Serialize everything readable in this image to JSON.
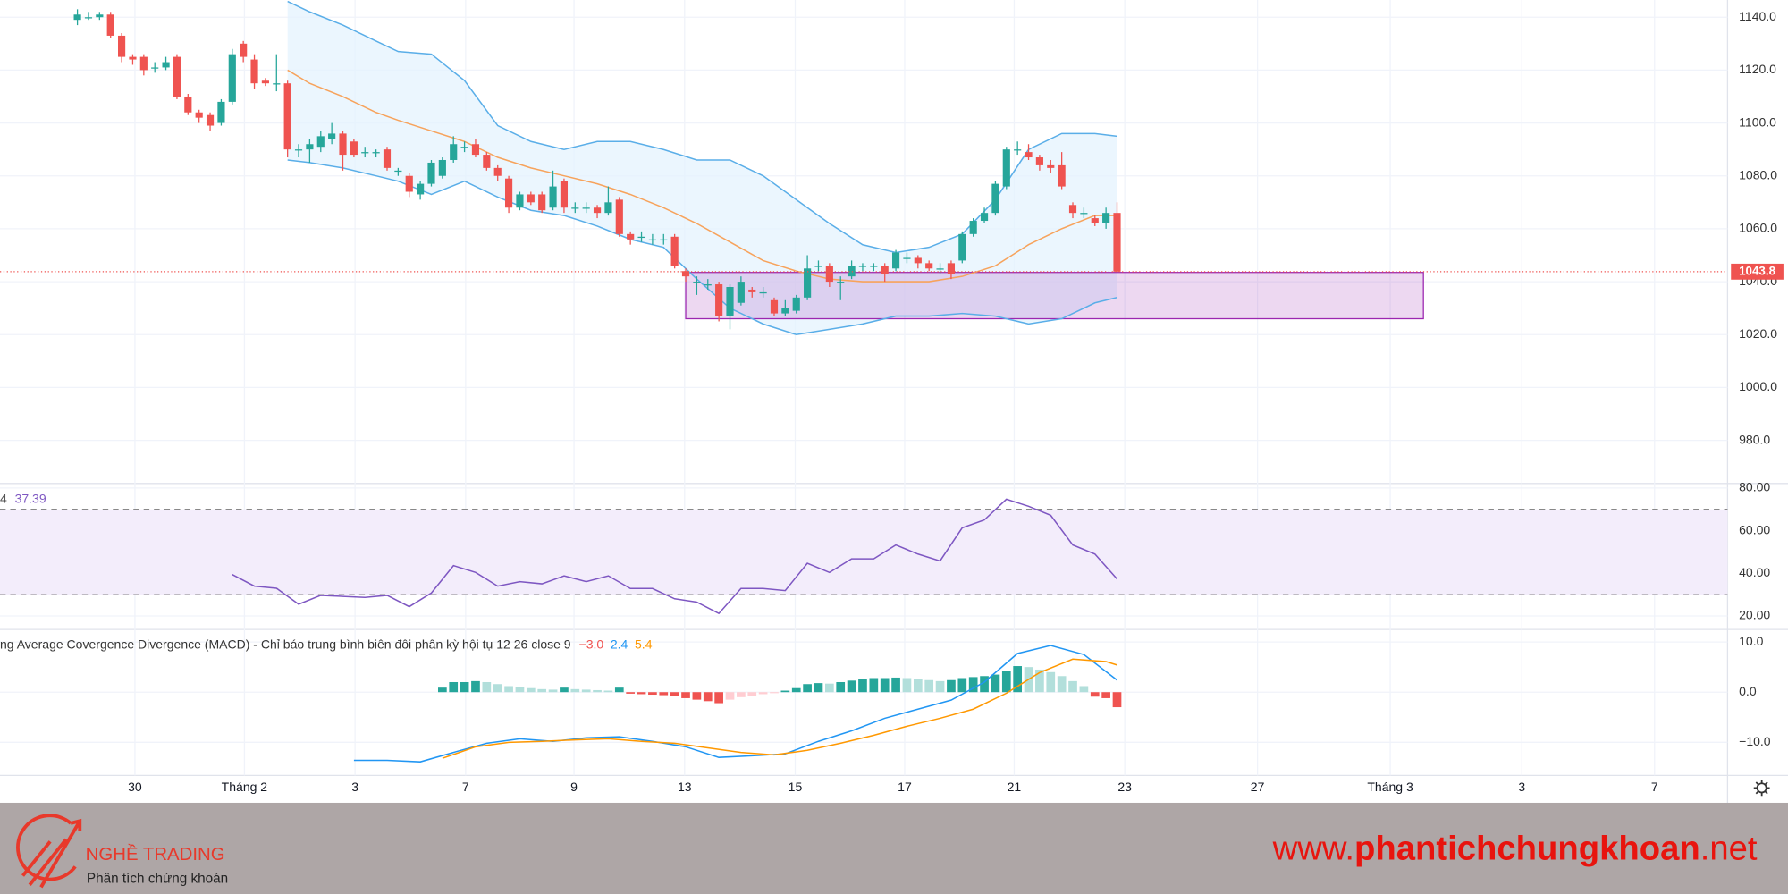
{
  "chart_data": [
    {
      "type": "candlestick",
      "open": [
        1139,
        1140,
        1140,
        1141,
        1133,
        1125,
        1125,
        1121,
        1121,
        1125,
        1110,
        1104,
        1103,
        1100,
        1108,
        1130,
        1124,
        1116,
        1115,
        1115,
        1090,
        1090,
        1091,
        1094,
        1096,
        1093,
        1089,
        1089,
        1090,
        1082,
        1080,
        1073,
        1077,
        1080,
        1086,
        1091,
        1092,
        1088,
        1083,
        1079,
        1068,
        1073,
        1073,
        1068,
        1078,
        1068,
        1068,
        1068,
        1066,
        1071,
        1058,
        1057,
        1056,
        1056,
        1057,
        1044,
        1040,
        1039,
        1039,
        1027,
        1032,
        1037,
        1036,
        1033,
        1028,
        1029,
        1034,
        1046,
        1046,
        1040,
        1042,
        1046,
        1046,
        1046,
        1045,
        1049,
        1049,
        1047,
        1045,
        1047,
        1048,
        1058,
        1063,
        1066,
        1076,
        1090,
        1089,
        1087,
        1084,
        1084,
        1069,
        1066,
        1064,
        1062,
        1066
      ],
      "high": [
        1143,
        1142,
        1142,
        1142,
        1134,
        1126,
        1126,
        1123,
        1125,
        1126,
        1111,
        1105,
        1104,
        1109,
        1128,
        1131,
        1126,
        1117,
        1126,
        1116,
        1092,
        1094,
        1097,
        1100,
        1097,
        1094,
        1091,
        1090,
        1091,
        1083,
        1081,
        1078,
        1086,
        1087,
        1095,
        1093,
        1094,
        1089,
        1084,
        1080,
        1074,
        1074,
        1074,
        1082,
        1079,
        1070,
        1070,
        1069,
        1076,
        1072,
        1059,
        1059,
        1058,
        1058,
        1058,
        1045,
        1042,
        1041,
        1040,
        1039,
        1042,
        1038,
        1038,
        1034,
        1033,
        1035,
        1050,
        1048,
        1047,
        1042,
        1048,
        1047,
        1047,
        1047,
        1052,
        1051,
        1050,
        1048,
        1047,
        1048,
        1059,
        1064,
        1068,
        1078,
        1091,
        1093,
        1092,
        1088,
        1086,
        1089,
        1070,
        1068,
        1065,
        1068,
        1070
      ],
      "low": [
        1137,
        1139,
        1139,
        1132,
        1123,
        1122,
        1118,
        1119,
        1120,
        1109,
        1103,
        1100,
        1097,
        1099,
        1107,
        1123,
        1113,
        1114,
        1112,
        1087,
        1087,
        1085,
        1089,
        1092,
        1082,
        1087,
        1087,
        1087,
        1082,
        1080,
        1072,
        1071,
        1076,
        1079,
        1085,
        1089,
        1087,
        1082,
        1078,
        1066,
        1067,
        1069,
        1066,
        1067,
        1066,
        1066,
        1066,
        1064,
        1065,
        1057,
        1054,
        1055,
        1054,
        1054,
        1045,
        1040,
        1035,
        1037,
        1025,
        1022,
        1031,
        1034,
        1034,
        1027,
        1027,
        1028,
        1033,
        1044,
        1038,
        1033,
        1041,
        1044,
        1044,
        1040,
        1044,
        1047,
        1045,
        1044,
        1043,
        1041,
        1047,
        1057,
        1062,
        1065,
        1075,
        1088,
        1086,
        1082,
        1081,
        1075,
        1064,
        1064,
        1061,
        1060,
        1043.8
      ],
      "close": [
        1141,
        1140,
        1141,
        1133,
        1125,
        1124,
        1120,
        1121,
        1123,
        1110,
        1104,
        1102,
        1099,
        1108,
        1126,
        1125,
        1115,
        1115,
        1115,
        1090,
        1090,
        1092,
        1095,
        1096,
        1088,
        1088,
        1089,
        1089,
        1083,
        1082,
        1074,
        1077,
        1085,
        1086,
        1092,
        1091,
        1088,
        1083,
        1080,
        1068,
        1073,
        1070,
        1067,
        1076,
        1068,
        1068,
        1068,
        1066,
        1070,
        1058,
        1056,
        1057,
        1056,
        1056,
        1046,
        1042,
        1040,
        1039,
        1027,
        1038,
        1040,
        1036,
        1036,
        1028,
        1030,
        1034,
        1045,
        1046,
        1040,
        1040,
        1046,
        1046,
        1046,
        1043,
        1051,
        1049,
        1047,
        1045,
        1045,
        1043,
        1058,
        1063,
        1066,
        1077,
        1090,
        1090,
        1087,
        1084,
        1083,
        1076,
        1066,
        1066,
        1062,
        1066,
        1043.8
      ],
      "up_color": "#26a69a",
      "down_color": "#ef5350",
      "series": [
        {
          "color": "#5aaee8",
          "x": [
            19,
            21,
            24,
            27,
            29,
            32,
            35,
            38,
            41,
            44,
            47,
            50,
            53,
            56,
            59,
            62,
            65,
            68,
            71,
            74,
            77,
            80,
            83,
            86,
            89,
            92,
            94
          ],
          "values": [
            1146,
            1142,
            1137,
            1131,
            1127,
            1126,
            1116,
            1099,
            1093,
            1090,
            1093,
            1093,
            1090,
            1086,
            1086,
            1080,
            1071,
            1062,
            1054,
            1051,
            1053,
            1058,
            1071,
            1090,
            1096,
            1096,
            1095
          ]
        },
        {
          "color": "#f7a35c",
          "x": [
            19,
            21,
            24,
            27,
            29,
            32,
            35,
            38,
            41,
            44,
            47,
            50,
            53,
            56,
            59,
            62,
            65,
            68,
            71,
            74,
            77,
            80,
            83,
            86,
            89,
            92,
            94
          ],
          "values": [
            1120,
            1115,
            1110,
            1104,
            1101,
            1097,
            1093,
            1087,
            1083,
            1080,
            1077,
            1073,
            1068,
            1062,
            1055,
            1048,
            1044,
            1041,
            1040,
            1040,
            1040,
            1042,
            1046,
            1054,
            1060,
            1065,
            1065
          ]
        },
        {
          "color": "#5aaee8",
          "x": [
            19,
            21,
            24,
            27,
            29,
            32,
            35,
            38,
            41,
            44,
            47,
            50,
            53,
            56,
            59,
            62,
            65,
            68,
            71,
            74,
            77,
            80,
            83,
            86,
            89,
            92,
            94
          ],
          "values": [
            1086,
            1085,
            1083,
            1080,
            1078,
            1073,
            1078,
            1072,
            1067,
            1065,
            1061,
            1056,
            1053,
            1041,
            1030,
            1024,
            1020,
            1022,
            1024,
            1027,
            1027,
            1028,
            1027,
            1024,
            1026,
            1032,
            1034
          ]
        }
      ],
      "band_fill": "#e3f2fd",
      "zone": {
        "x": [
          55,
          121.7
        ],
        "y": [
          1026,
          1043.5
        ],
        "color": "#9c27b0"
      },
      "price_line": 1043.8,
      "price_color": "#ef5350",
      "ylim": [
        963.7,
        1146.5
      ],
      "yticks": [
        {
          "value": 980,
          "label": "980.0"
        },
        {
          "value": 1000,
          "label": "1000.0"
        },
        {
          "value": 1020,
          "label": "1020.0"
        },
        {
          "value": 1040,
          "label": "1040.0"
        },
        {
          "value": 1060,
          "label": "1060.0"
        },
        {
          "value": 1080,
          "label": "1080.0"
        },
        {
          "value": 1100,
          "label": "1100.0"
        },
        {
          "value": 1120,
          "label": "1120.0"
        },
        {
          "value": 1140,
          "label": "1140.0"
        }
      ],
      "xlim": [
        -7,
        149.2
      ],
      "xticks": [
        {
          "value": 5.2,
          "label": "30"
        },
        {
          "value": 15.1,
          "label": "Tháng 2"
        },
        {
          "value": 25.1,
          "label": "3"
        },
        {
          "value": 35.1,
          "label": "7"
        },
        {
          "value": 44.9,
          "label": "9"
        },
        {
          "value": 54.9,
          "label": "13"
        },
        {
          "value": 64.9,
          "label": "15"
        },
        {
          "value": 74.8,
          "label": "17"
        },
        {
          "value": 84.7,
          "label": "21"
        },
        {
          "value": 94.7,
          "label": "23"
        },
        {
          "value": 106.7,
          "label": "27"
        },
        {
          "value": 118.7,
          "label": "Tháng 3"
        },
        {
          "value": 130.6,
          "label": "3"
        },
        {
          "value": 142.6,
          "label": "7"
        }
      ],
      "grid": true
    },
    {
      "type": "line",
      "legend": "4",
      "color": "#7e57c2",
      "x": [
        14,
        16,
        18,
        20,
        22,
        24,
        26,
        28,
        30,
        32,
        34,
        36,
        38,
        40,
        42,
        44,
        46,
        48,
        50,
        52,
        54,
        56,
        58,
        60,
        62,
        64,
        66,
        68,
        70,
        72,
        74,
        76,
        78,
        80,
        82,
        84,
        86,
        88,
        90,
        92,
        94
      ],
      "values": [
        39.4,
        34,
        33,
        25.5,
        29.7,
        29.2,
        28.7,
        29.7,
        24.4,
        30.8,
        43.6,
        40.4,
        34,
        36.1,
        35.1,
        38.8,
        36.1,
        38.8,
        32.9,
        32.9,
        28.1,
        26.5,
        21.2,
        32.9,
        32.9,
        31.9,
        44.7,
        40.4,
        46.8,
        46.8,
        53.3,
        49,
        45.8,
        61.3,
        65,
        74.7,
        71.4,
        67.2,
        53.3,
        49,
        37.39
      ],
      "band": [
        30,
        70
      ],
      "band_color": "#f3edfb",
      "ylim": [
        13.7,
        82.1
      ],
      "yticks": [
        {
          "value": 20,
          "label": "20.00"
        },
        {
          "value": 40,
          "label": "40.00"
        },
        {
          "value": 60,
          "label": "60.00"
        },
        {
          "value": 80,
          "label": "80.00"
        }
      ]
    },
    {
      "type": "bar",
      "legend": "ng Average Covergence Divergence (MACD) - Chỉ báo trung bình biên đôi phân kỳ hội tụ 12 26 close 9",
      "legend_labels": [
        "−3.0",
        "2.4",
        "5.4"
      ],
      "legend_colors": [
        "#ef5350",
        "#2196f3",
        "#ff9800"
      ],
      "x": [
        33,
        34,
        35,
        36,
        37,
        38,
        39,
        40,
        41,
        42,
        43,
        44,
        45,
        46,
        47,
        48,
        49,
        50,
        51,
        52,
        53,
        54,
        55,
        56,
        57,
        58,
        59,
        60,
        61,
        62,
        63,
        64,
        65,
        66,
        67,
        68,
        69,
        70,
        71,
        72,
        73,
        74,
        75,
        76,
        77,
        78,
        79,
        80,
        81,
        82,
        83,
        84,
        85,
        86,
        87,
        88,
        89,
        90,
        91,
        92,
        93,
        94
      ],
      "values": [
        0.9,
        2,
        2,
        2.2,
        2,
        1.6,
        1.2,
        1,
        0.8,
        0.6,
        0.5,
        0.9,
        0.6,
        0.5,
        0.4,
        0.3,
        0.9,
        -0.3,
        -0.4,
        -0.5,
        -0.6,
        -0.8,
        -1.2,
        -1.5,
        -1.8,
        -2.2,
        -1.5,
        -1,
        -0.7,
        -0.4,
        -0.2,
        0.3,
        0.8,
        1.6,
        1.8,
        1.7,
        2,
        2.3,
        2.6,
        2.8,
        2.8,
        2.9,
        2.8,
        2.6,
        2.4,
        2.2,
        2.4,
        2.8,
        3,
        3.2,
        3.5,
        4.3,
        5.2,
        5,
        4.5,
        4,
        3.2,
        2.2,
        1.2,
        -0.9,
        -1.2,
        -3
      ],
      "colors": {
        "up_grow": "#26a69a",
        "up_fall": "#b2dfdb",
        "down_fall": "#ef5350",
        "down_grow": "#ffcdd2"
      },
      "series": [
        {
          "color": "#2196f3",
          "x": [
            25,
            28,
            31,
            34,
            37,
            40,
            43,
            46,
            49,
            52,
            55,
            58,
            61,
            64,
            67,
            70,
            73,
            76,
            79,
            82,
            85,
            88,
            91,
            94
          ],
          "values": [
            -13.6,
            -13.6,
            -13.9,
            -12,
            -10.2,
            -9.3,
            -9.8,
            -9.1,
            -8.9,
            -9.8,
            -10.9,
            -13,
            -12.7,
            -12.3,
            -9.8,
            -7.7,
            -5.2,
            -3.4,
            -1.6,
            2,
            7.7,
            9.3,
            7.5,
            2.4
          ]
        },
        {
          "color": "#ff9800",
          "x": [
            33,
            36,
            39,
            42,
            45,
            48,
            51,
            54,
            57,
            60,
            63,
            66,
            69,
            72,
            75,
            78,
            81,
            84,
            87,
            90,
            93,
            94
          ],
          "values": [
            -13.2,
            -10.9,
            -10,
            -9.8,
            -9.5,
            -9.3,
            -9.8,
            -10.2,
            -11.1,
            -12,
            -12.5,
            -11.6,
            -10.2,
            -8.6,
            -6.8,
            -5.2,
            -3.4,
            -0.2,
            3.9,
            6.6,
            6.1,
            5.4
          ]
        }
      ],
      "ylim": [
        -16.6,
        12.5
      ],
      "yticks": [
        {
          "value": -10,
          "label": "−10.0"
        },
        {
          "value": 0,
          "label": "0.0"
        },
        {
          "value": 10,
          "label": "10.0"
        }
      ]
    }
  ],
  "footer": {
    "brand": "NGHỀ TRADING",
    "tagline": "Phân tích chứng khoán",
    "url": [
      "www.",
      "phantichchungkhoan",
      ".net"
    ]
  }
}
